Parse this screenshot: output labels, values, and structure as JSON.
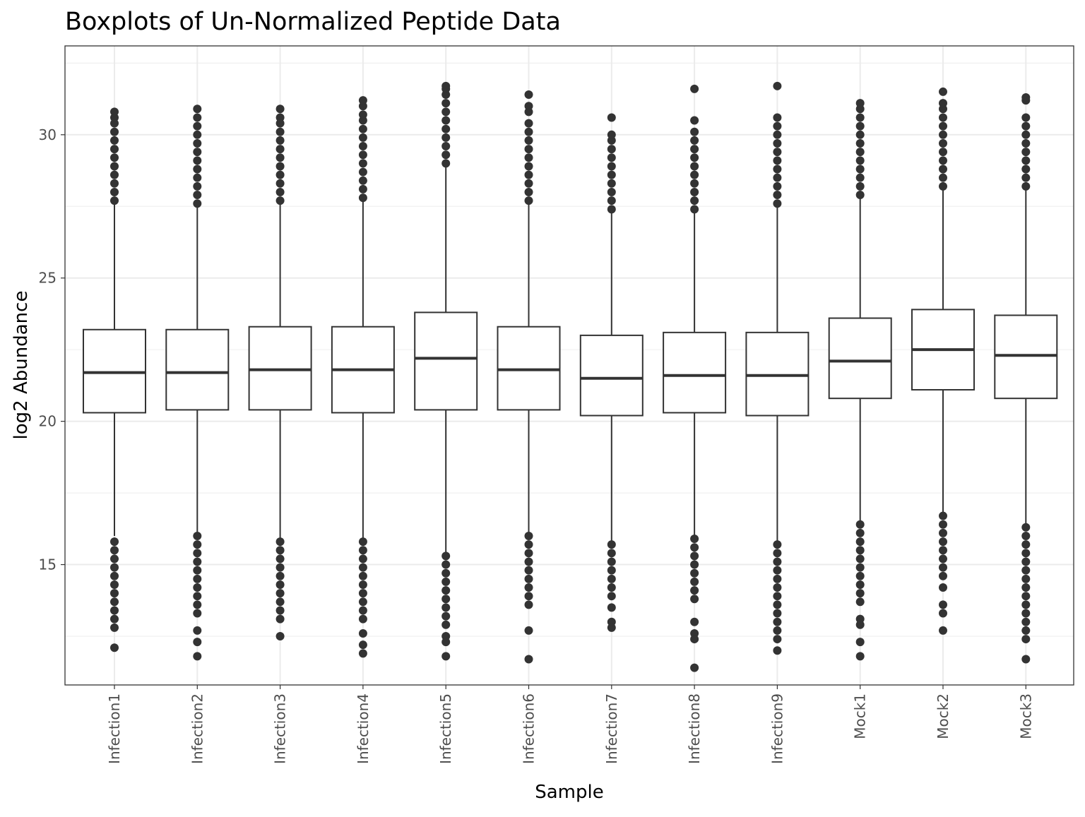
{
  "chart_data": {
    "type": "boxplot",
    "title": "Boxplots of Un-Normalized Peptide Data",
    "xlabel": "Sample",
    "ylabel": "log2 Abundance",
    "ylim": [
      10.8,
      33.1
    ],
    "yticks": [
      15,
      20,
      25,
      30
    ],
    "grid": true,
    "categories": [
      "Infection1",
      "Infection2",
      "Infection3",
      "Infection4",
      "Infection5",
      "Infection6",
      "Infection7",
      "Infection8",
      "Infection9",
      "Mock1",
      "Mock2",
      "Mock3"
    ],
    "series": [
      {
        "boxes": [
          {
            "low": 16.0,
            "q1": 20.3,
            "median": 21.7,
            "q3": 23.2,
            "high": 27.6
          },
          {
            "low": 16.1,
            "q1": 20.4,
            "median": 21.7,
            "q3": 23.2,
            "high": 27.5
          },
          {
            "low": 15.9,
            "q1": 20.4,
            "median": 21.8,
            "q3": 23.3,
            "high": 27.6
          },
          {
            "low": 15.9,
            "q1": 20.3,
            "median": 21.8,
            "q3": 23.3,
            "high": 27.7
          },
          {
            "low": 15.4,
            "q1": 20.4,
            "median": 22.2,
            "q3": 23.8,
            "high": 28.9
          },
          {
            "low": 16.0,
            "q1": 20.4,
            "median": 21.8,
            "q3": 23.3,
            "high": 27.6
          },
          {
            "low": 15.8,
            "q1": 20.2,
            "median": 21.5,
            "q3": 23.0,
            "high": 27.3
          },
          {
            "low": 15.9,
            "q1": 20.3,
            "median": 21.6,
            "q3": 23.1,
            "high": 27.3
          },
          {
            "low": 15.8,
            "q1": 20.2,
            "median": 21.6,
            "q3": 23.1,
            "high": 27.5
          },
          {
            "low": 16.5,
            "q1": 20.8,
            "median": 22.1,
            "q3": 23.6,
            "high": 27.8
          },
          {
            "low": 16.8,
            "q1": 21.1,
            "median": 22.5,
            "q3": 23.9,
            "high": 28.1
          },
          {
            "low": 16.4,
            "q1": 20.8,
            "median": 22.3,
            "q3": 23.7,
            "high": 28.1
          }
        ],
        "outliers": [
          [
            27.7,
            28.0,
            28.3,
            28.6,
            28.9,
            29.2,
            29.5,
            29.8,
            30.1,
            30.4,
            30.6,
            30.8,
            15.8,
            15.5,
            15.2,
            14.9,
            14.6,
            14.3,
            14.0,
            13.7,
            13.4,
            13.1,
            12.8,
            12.1
          ],
          [
            27.6,
            27.9,
            28.2,
            28.5,
            28.8,
            29.1,
            29.4,
            29.7,
            30.0,
            30.3,
            30.6,
            30.9,
            16.0,
            15.7,
            15.4,
            15.1,
            14.8,
            14.5,
            14.2,
            13.9,
            13.6,
            13.3,
            12.7,
            12.3,
            11.8
          ],
          [
            27.7,
            28.0,
            28.3,
            28.6,
            28.9,
            29.2,
            29.5,
            29.8,
            30.1,
            30.4,
            30.6,
            30.9,
            15.8,
            15.5,
            15.2,
            14.9,
            14.6,
            14.3,
            14.0,
            13.7,
            13.4,
            13.1,
            12.5
          ],
          [
            27.8,
            28.1,
            28.4,
            28.7,
            29.0,
            29.3,
            29.6,
            29.9,
            30.2,
            30.5,
            30.7,
            31.0,
            31.2,
            15.8,
            15.5,
            15.2,
            14.9,
            14.6,
            14.3,
            14.0,
            13.7,
            13.4,
            13.1,
            12.6,
            12.2,
            11.9
          ],
          [
            29.0,
            29.3,
            29.6,
            29.9,
            30.2,
            30.5,
            30.8,
            31.1,
            31.4,
            31.6,
            31.7,
            15.3,
            15.0,
            14.7,
            14.4,
            14.1,
            13.8,
            13.5,
            13.2,
            12.9,
            12.5,
            12.3,
            11.8
          ],
          [
            27.7,
            28.0,
            28.3,
            28.6,
            28.9,
            29.2,
            29.5,
            29.8,
            30.1,
            30.4,
            30.8,
            31.0,
            31.4,
            16.0,
            15.7,
            15.4,
            15.1,
            14.8,
            14.5,
            14.2,
            13.9,
            13.6,
            12.7,
            11.7
          ],
          [
            27.4,
            27.7,
            28.0,
            28.3,
            28.6,
            28.9,
            29.2,
            29.5,
            29.8,
            30.0,
            30.6,
            15.7,
            15.4,
            15.1,
            14.8,
            14.5,
            14.2,
            13.9,
            13.5,
            13.0,
            12.8
          ],
          [
            27.4,
            27.7,
            28.0,
            28.3,
            28.6,
            28.9,
            29.2,
            29.5,
            29.8,
            30.1,
            30.5,
            31.6,
            15.9,
            15.6,
            15.3,
            15.0,
            14.7,
            14.4,
            14.1,
            13.8,
            13.0,
            12.6,
            12.4,
            11.4
          ],
          [
            27.6,
            27.9,
            28.2,
            28.5,
            28.8,
            29.1,
            29.4,
            29.7,
            30.0,
            30.3,
            30.6,
            31.7,
            15.7,
            15.4,
            15.1,
            14.8,
            14.5,
            14.2,
            13.9,
            13.6,
            13.3,
            13.0,
            12.7,
            12.4,
            12.0
          ],
          [
            27.9,
            28.2,
            28.5,
            28.8,
            29.1,
            29.4,
            29.7,
            30.0,
            30.3,
            30.6,
            30.9,
            31.1,
            16.4,
            16.1,
            15.8,
            15.5,
            15.2,
            14.9,
            14.6,
            14.3,
            14.0,
            13.7,
            13.1,
            12.9,
            12.3,
            11.8
          ],
          [
            28.2,
            28.5,
            28.8,
            29.1,
            29.4,
            29.7,
            30.0,
            30.3,
            30.6,
            30.9,
            31.1,
            31.5,
            16.7,
            16.4,
            16.1,
            15.8,
            15.5,
            15.2,
            14.9,
            14.6,
            14.2,
            13.6,
            13.3,
            12.7
          ],
          [
            28.2,
            28.5,
            28.8,
            29.1,
            29.4,
            29.7,
            30.0,
            30.3,
            30.6,
            31.2,
            31.3,
            16.3,
            16.0,
            15.7,
            15.4,
            15.1,
            14.8,
            14.5,
            14.2,
            13.9,
            13.6,
            13.3,
            13.0,
            12.7,
            12.4,
            11.7
          ]
        ]
      }
    ]
  }
}
